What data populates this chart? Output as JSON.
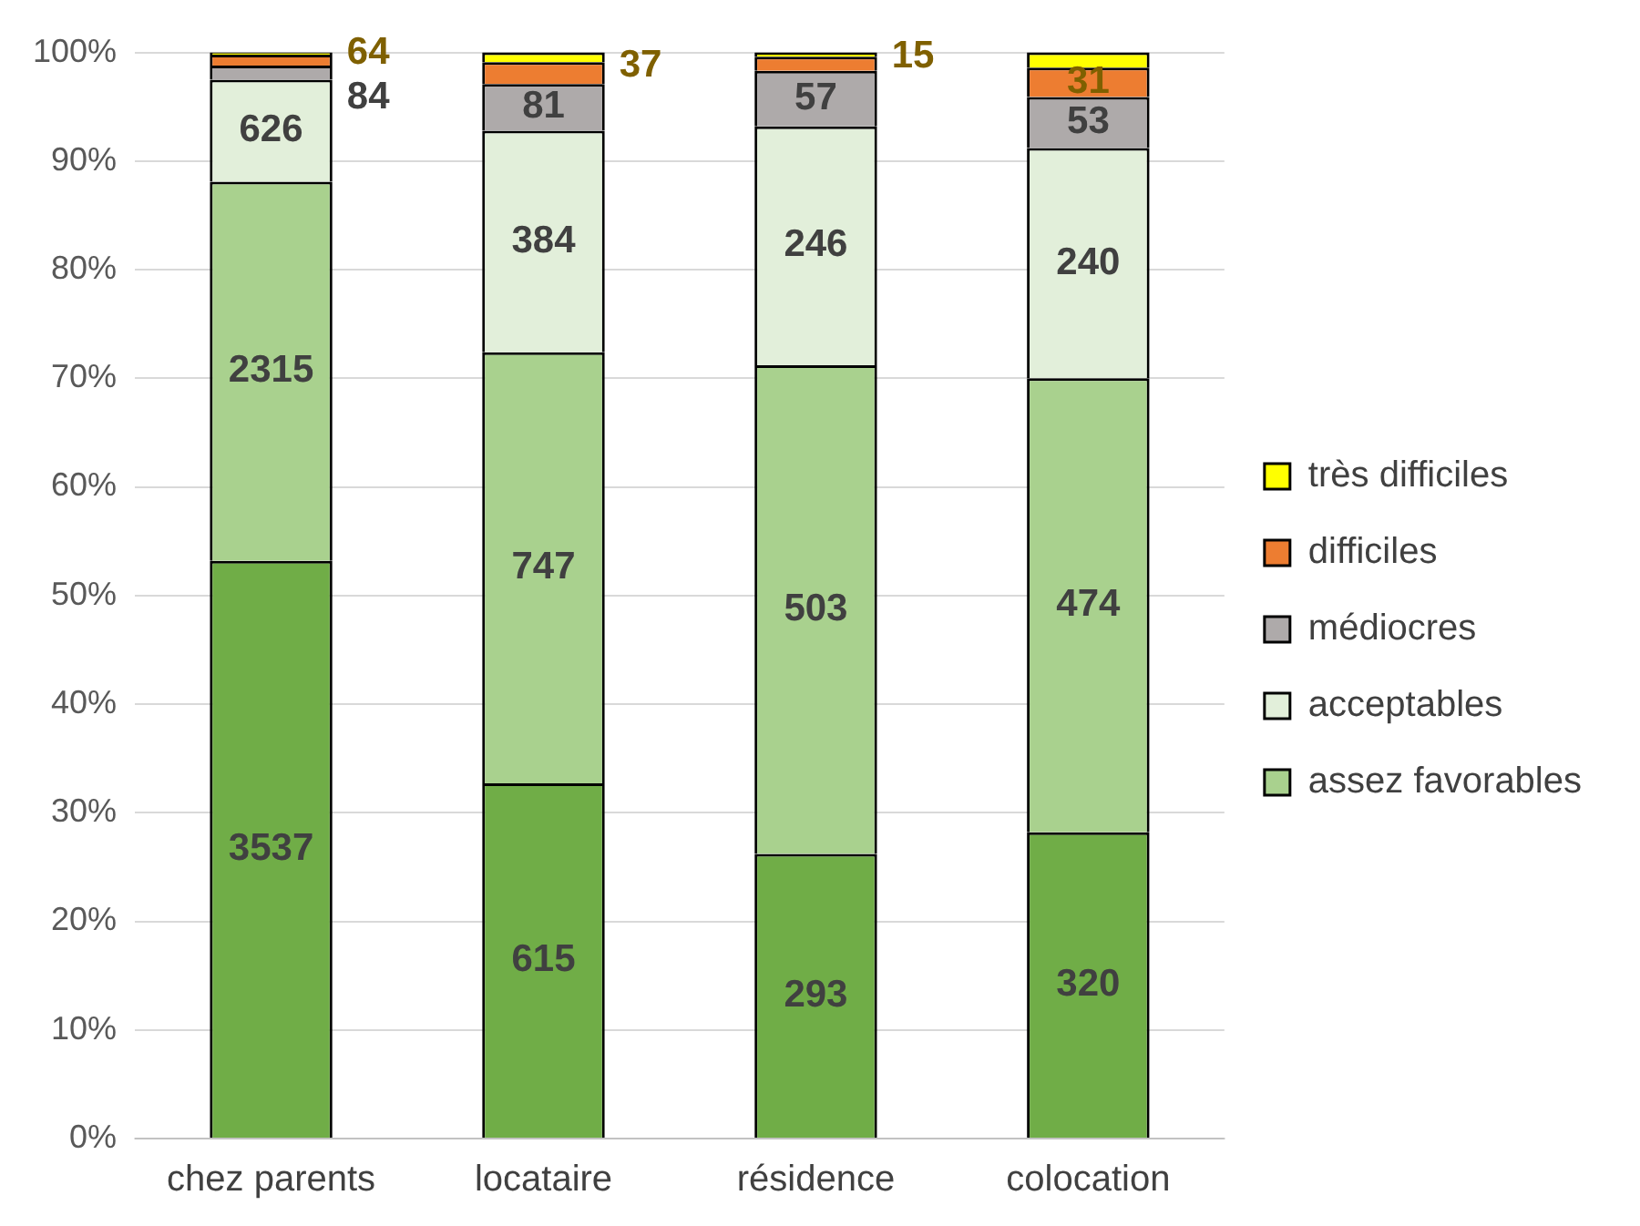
{
  "chart_data": {
    "type": "bar",
    "stacked": true,
    "categories": [
      "chez parents",
      "locataire",
      "résidence",
      "colocation"
    ],
    "series": [
      {
        "color": "#70ad47",
        "values": [
          53.2,
          32.7,
          26.2,
          28.2
        ]
      },
      {
        "name": "assez favorables",
        "color": "#a9d18e",
        "values": [
          34.9,
          39.7,
          45.0,
          41.8
        ]
      },
      {
        "name": "acceptables",
        "color": "#e2efda",
        "values": [
          9.4,
          20.4,
          22.0,
          21.2
        ]
      },
      {
        "name": "médiocres",
        "color": "#aeaaaa",
        "values": [
          1.3,
          4.3,
          5.1,
          4.7
        ]
      },
      {
        "name": "difficiles",
        "color": "#ed7d31",
        "values": [
          1.0,
          2.0,
          1.3,
          2.7
        ]
      },
      {
        "name": "très difficiles",
        "color": "#ffff00",
        "values": [
          0.2,
          0.9,
          0.4,
          1.4
        ]
      }
    ],
    "annotations": [
      "3537",
      "2315",
      "626",
      "84",
      "64",
      "615",
      "747",
      "384",
      "81",
      "37",
      "293",
      "503",
      "246",
      "57",
      "15",
      "320",
      "474",
      "240",
      "53",
      "31"
    ],
    "ylim": [
      0,
      100
    ],
    "yticks": [
      {
        "value": 0,
        "label": "0%"
      },
      {
        "value": 10,
        "label": "10%"
      },
      {
        "value": 20,
        "label": "20%"
      },
      {
        "value": 30,
        "label": "30%"
      },
      {
        "value": 40,
        "label": "40%"
      },
      {
        "value": 50,
        "label": "50%"
      },
      {
        "value": 60,
        "label": "60%"
      },
      {
        "value": 70,
        "label": "70%"
      },
      {
        "value": 80,
        "label": "80%"
      },
      {
        "value": 90,
        "label": "90%"
      },
      {
        "value": 100,
        "label": "100%"
      }
    ],
    "grid": "y",
    "legend": "right"
  }
}
